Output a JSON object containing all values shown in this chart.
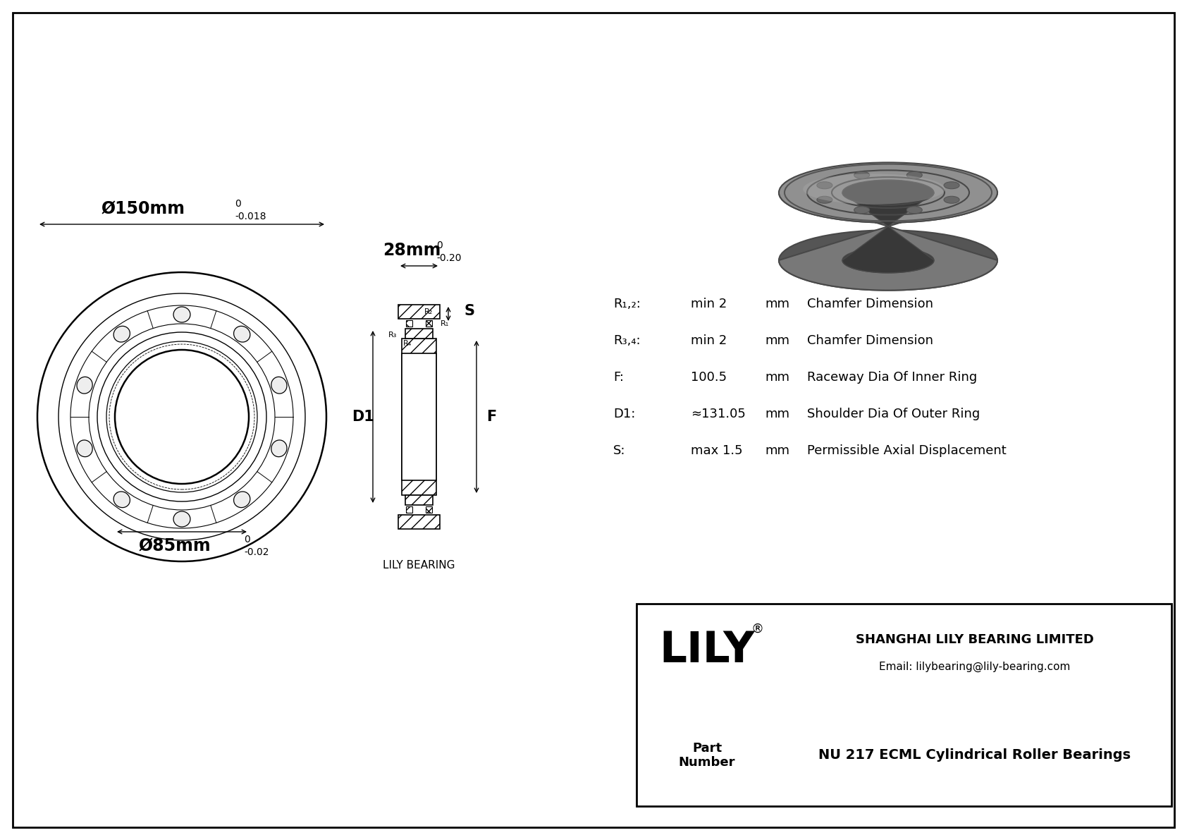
{
  "bg_color": "#ffffff",
  "lc": "#000000",
  "dim_outer": "Ø150mm",
  "dim_outer_tol_top": "0",
  "dim_outer_tol_bot": "-0.018",
  "dim_inner": "Ø85mm",
  "dim_inner_tol_top": "0",
  "dim_inner_tol_bot": "-0.02",
  "dim_width": "28mm",
  "dim_width_tol_top": "0",
  "dim_width_tol_bot": "-0.20",
  "params": [
    [
      "R₁,₂:",
      "min 2",
      "mm",
      "Chamfer Dimension"
    ],
    [
      "R₃,₄:",
      "min 2",
      "mm",
      "Chamfer Dimension"
    ],
    [
      "F:",
      "100.5",
      "mm",
      "Raceway Dia Of Inner Ring"
    ],
    [
      "D1:",
      "≈131.05",
      "mm",
      "Shoulder Dia Of Outer Ring"
    ],
    [
      "S:",
      "max 1.5",
      "mm",
      "Permissible Axial Displacement"
    ]
  ],
  "label_D1": "D1",
  "label_F": "F",
  "label_S": "S",
  "label_R1": "R₁",
  "label_R2": "R₂",
  "label_R3": "R₃",
  "label_R4": "R₄",
  "lily_bearing_text": "LILY BEARING",
  "company": "SHANGHAI LILY BEARING LIMITED",
  "email": "Email: lilybearing@lily-bearing.com",
  "part_label": "Part\nNumber",
  "part_number": "NU 217 ECML Cylindrical Roller Bearings",
  "lily_brand": "LILY",
  "registered": "®"
}
